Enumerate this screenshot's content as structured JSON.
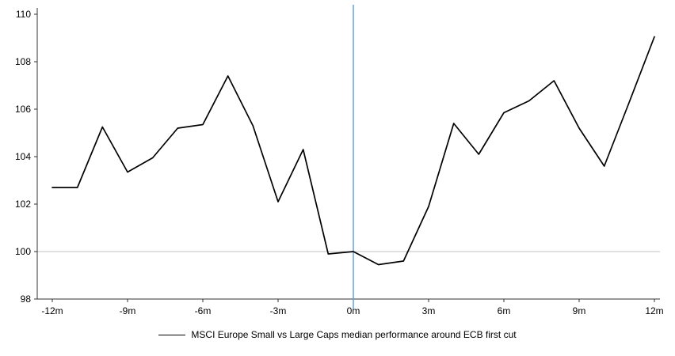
{
  "chart_data": {
    "type": "line",
    "title": "",
    "xlabel": "",
    "ylabel": "",
    "x": [
      -12,
      -11,
      -10,
      -9,
      -8,
      -7,
      -6,
      -5,
      -4,
      -3,
      -2,
      -1,
      0,
      1,
      2,
      3,
      4,
      5,
      6,
      7,
      8,
      9,
      10,
      11,
      12
    ],
    "series": [
      {
        "name": "MSCI Europe Small vs Large Caps median performance around ECB first cut",
        "color": "#000000",
        "values": [
          102.7,
          102.7,
          105.25,
          103.35,
          103.95,
          105.2,
          105.35,
          107.4,
          105.3,
          102.1,
          104.3,
          99.9,
          100,
          99.45,
          99.6,
          101.9,
          105.4,
          104.1,
          105.85,
          106.35,
          107.2,
          105.2,
          103.6,
          106.3,
          109.05
        ]
      }
    ],
    "ylim": [
      98,
      110
    ],
    "yticks": [
      98,
      100,
      102,
      104,
      106,
      108,
      110
    ],
    "y_tick_labels": [
      "98",
      "100",
      "102",
      "104",
      "106",
      "108",
      "110"
    ],
    "xticks": [
      -12,
      -9,
      -6,
      -3,
      0,
      3,
      6,
      9,
      12
    ],
    "xtick_labels": [
      "-12m",
      "-9m",
      "-6m",
      "-3m",
      "0m",
      "3m",
      "6m",
      "9m",
      "12m"
    ],
    "grid": false,
    "legend_position": "bottom",
    "reference_lines": [
      {
        "axis": "y",
        "value": 100,
        "color": "#C0C0C0"
      },
      {
        "axis": "x",
        "value": 0,
        "color": "#5B9BD5"
      }
    ]
  },
  "legend": {
    "label": "MSCI Europe Small vs Large Caps median performance around ECB first cut"
  },
  "colors": {
    "series": "#000000",
    "event_line": "#5B9BD5",
    "baseline": "#C0C0C0",
    "axis": "#333333",
    "text": "#000000",
    "background": "#ffffff"
  }
}
